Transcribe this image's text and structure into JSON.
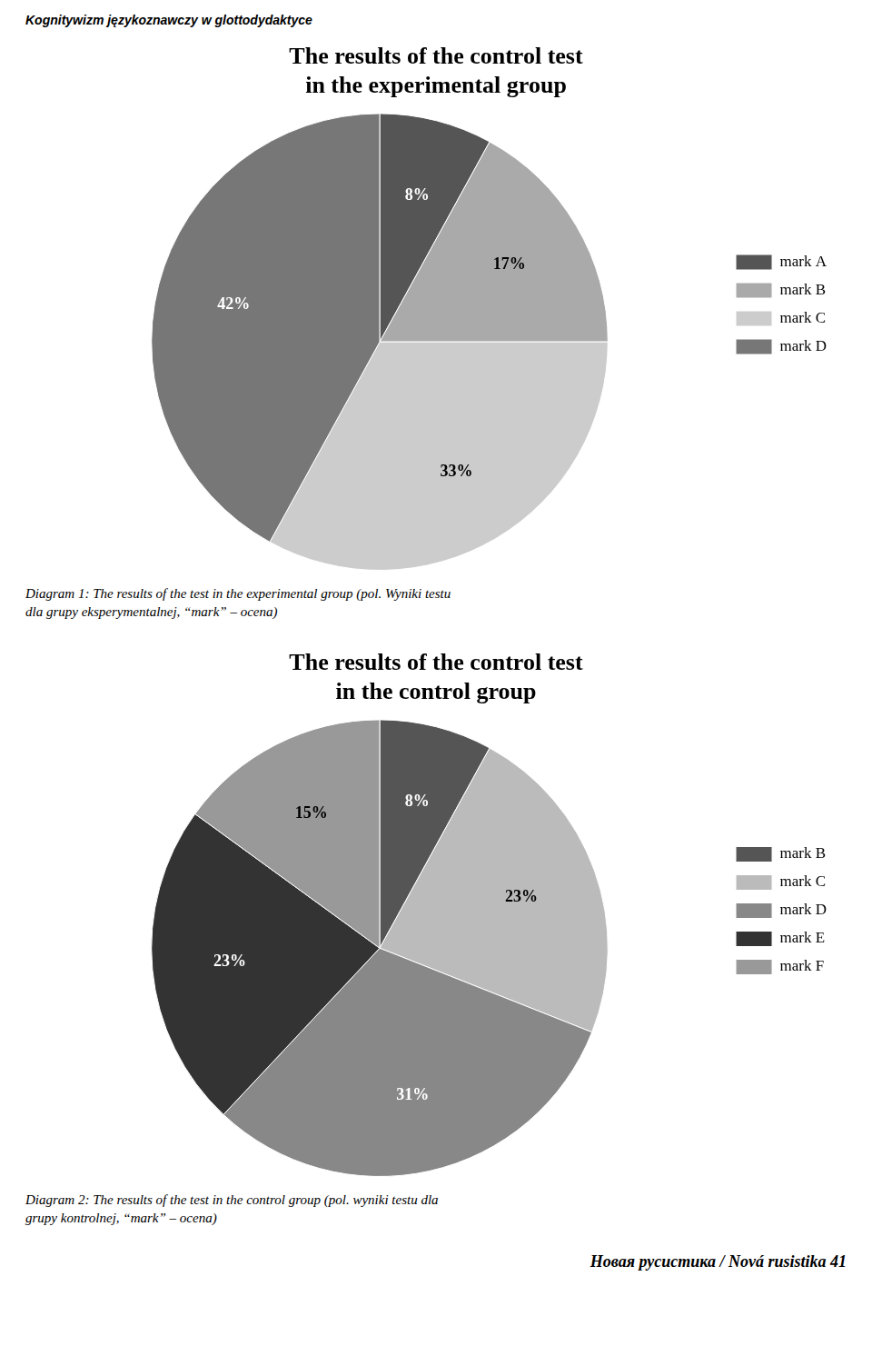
{
  "chart_data": [
    {
      "type": "pie",
      "title": "The results of the control test\nin the experimental group",
      "categories": [
        "mark A",
        "mark B",
        "mark C",
        "mark D"
      ],
      "values": [
        8,
        17,
        33,
        42
      ],
      "value_labels": [
        "8%",
        "17%",
        "33%",
        "42%"
      ],
      "colors": [
        "#555555",
        "#aaaaaa",
        "#cccccc",
        "#777777"
      ],
      "data_labels": true,
      "legend": "right",
      "annotations": [
        "Diagram 1: The results of the test in the experimental group (pol. Wyniki testu\ndla grupy eksperymentalnej, “mark” – ocena)"
      ]
    },
    {
      "type": "pie",
      "title": "The results of the control test\nin the control group",
      "categories": [
        "mark B",
        "mark C",
        "mark D",
        "mark E",
        "mark F"
      ],
      "values": [
        8,
        23,
        31,
        23,
        15
      ],
      "value_labels": [
        "8%",
        "23%",
        "31%",
        "23%",
        "15%"
      ],
      "colors": [
        "#555555",
        "#bbbbbb",
        "#888888",
        "#333333",
        "#999999"
      ],
      "data_labels": true,
      "legend": "right",
      "annotations": [
        "Diagram 2: The results of the test in the control group (pol. wyniki testu dla\ngrupy kontrolnej, “mark” – ocena)"
      ]
    }
  ],
  "annotations": [
    "Kognitywizm językoznawczy w glottodydaktyce",
    "Новая русистика / Nová rusistika 41"
  ]
}
